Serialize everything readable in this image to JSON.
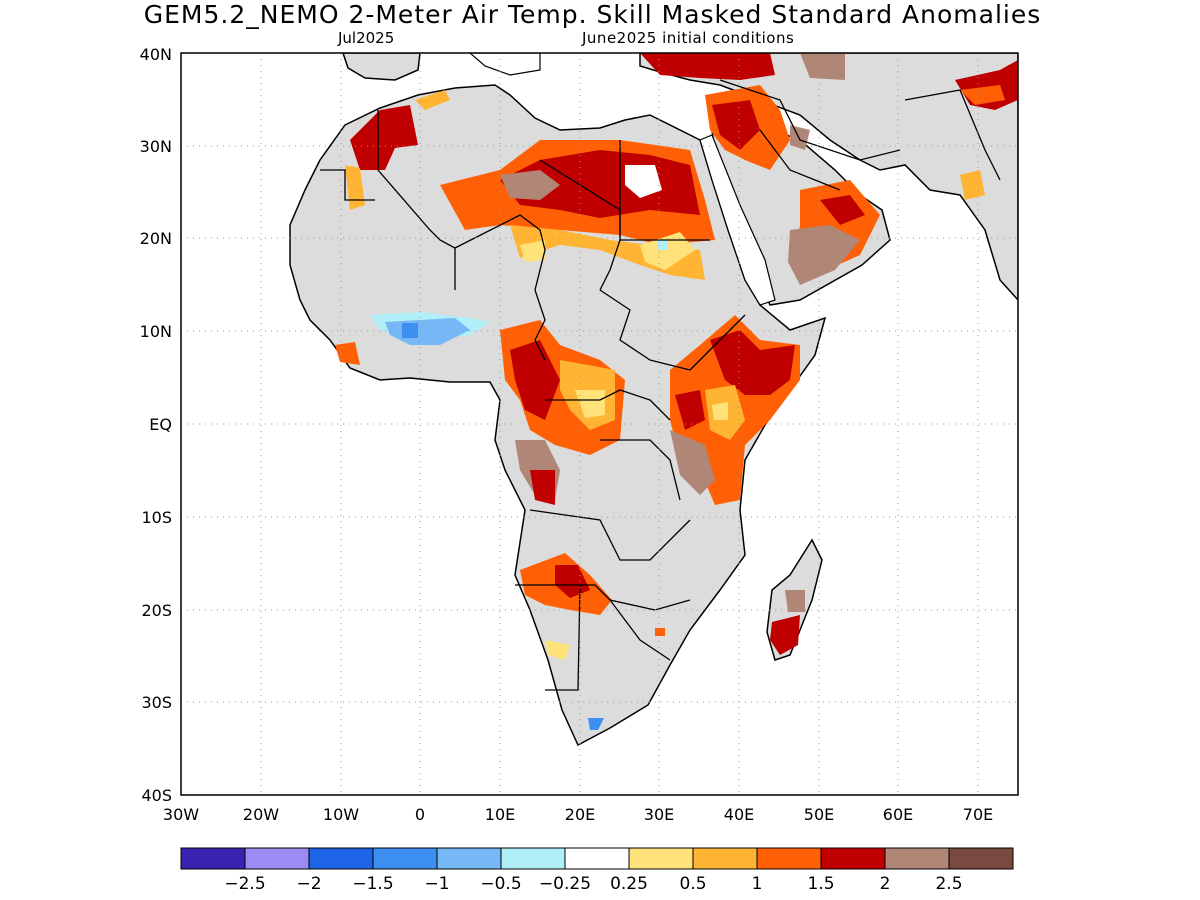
{
  "title": "GEM5.2_NEMO 2-Meter Air Temp. Skill Masked Standard Anomalies",
  "valid_month": "Jul2025",
  "initial_conditions": "June2025 initial conditions",
  "lat_labels": [
    "40N",
    "30N",
    "20N",
    "10N",
    "EQ",
    "10S",
    "20S",
    "30S",
    "40S"
  ],
  "lon_labels": [
    "30W",
    "20W",
    "10W",
    "0",
    "10E",
    "20E",
    "30E",
    "40E",
    "50E",
    "60E",
    "70E"
  ],
  "colorbar": {
    "colors": [
      "#3a22b0",
      "#9b8cf4",
      "#1e64e6",
      "#3d8ff2",
      "#75b8f5",
      "#b0eef8",
      "#ffffff",
      "#ffe27a",
      "#ffb533",
      "#ff6005",
      "#c00000",
      "#b08677",
      "#7a4a40"
    ],
    "labels": [
      "-2.5",
      "-2",
      "-1.5",
      "-1",
      "-0.5",
      "-0.25",
      "0.25",
      "0.5",
      "1",
      "1.5",
      "2",
      "2.5"
    ]
  },
  "colors": {
    "land_no_skill": "#dcdcdc",
    "ocean": "#ffffff",
    "coast": "#000000"
  }
}
